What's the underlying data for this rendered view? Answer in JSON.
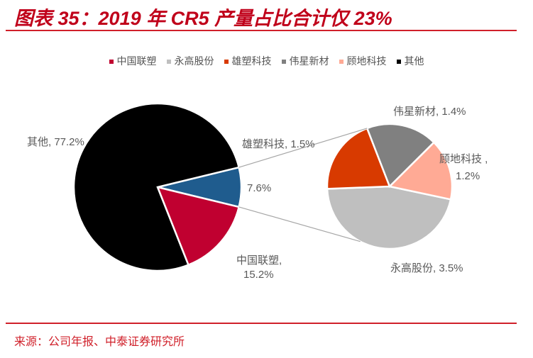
{
  "title": "图表 35：2019 年 CR5 产量占比合计仅 23%",
  "source": "来源：公司年报、中泰证券研究所",
  "chart_data": {
    "type": "pie",
    "subtype": "pie-of-pie",
    "legend_position": "top",
    "legend": [
      {
        "name": "中国联塑",
        "color": "#C00030"
      },
      {
        "name": "永高股份",
        "color": "#BFBFBF"
      },
      {
        "name": "雄塑科技",
        "color": "#D83A00"
      },
      {
        "name": "伟星新材",
        "color": "#808080"
      },
      {
        "name": "顾地科技",
        "color": "#FFAA95"
      },
      {
        "name": "其他",
        "color": "#000000"
      }
    ],
    "main": [
      {
        "name": "",
        "value": 7.6,
        "label": "7.6%",
        "color": "#1F5C8E"
      },
      {
        "name": "中国联塑",
        "value": 15.2,
        "label": "中国联塑,",
        "label2": "15.2%",
        "color": "#C00030"
      },
      {
        "name": "其他",
        "value": 77.2,
        "label": "其他, 77.2%",
        "color": "#000000"
      }
    ],
    "secondary": [
      {
        "name": "永高股份",
        "value": 3.5,
        "label": "永高股份, 3.5%",
        "color": "#BFBFBF"
      },
      {
        "name": "雄塑科技",
        "value": 1.5,
        "label": "雄塑科技, 1.5%",
        "color": "#D83A00"
      },
      {
        "name": "伟星新材",
        "value": 1.4,
        "label": "伟星新材, 1.4%",
        "color": "#808080"
      },
      {
        "name": "顾地科技",
        "value": 1.2,
        "label": "顾地科技 ,",
        "label2": "1.2%",
        "color": "#FFAA95"
      }
    ]
  }
}
